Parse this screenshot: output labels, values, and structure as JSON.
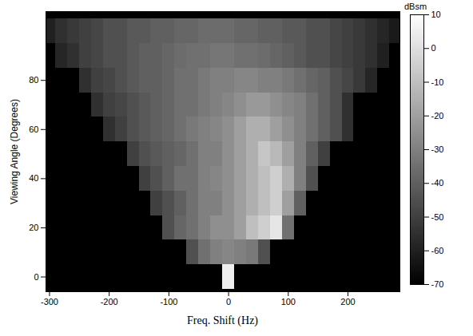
{
  "chart_data": {
    "type": "heatmap",
    "x_label": "Freq. Shift (Hz)",
    "y_label": "Viewing Angle (Degrees)",
    "xlim": [
      -306,
      287
    ],
    "xticks": [
      -300,
      -200,
      -100,
      0,
      100,
      200
    ],
    "ylim": [
      -6,
      108
    ],
    "yticks": [
      0,
      20,
      40,
      60,
      80
    ],
    "freq_edges": [
      -310,
      -290,
      -270,
      -250,
      -230,
      -210,
      -190,
      -170,
      -150,
      -130,
      -110,
      -90,
      -70,
      -50,
      -30,
      -10,
      10,
      30,
      50,
      70,
      90,
      110,
      130,
      150,
      170,
      190,
      210,
      230,
      250,
      270,
      290
    ],
    "angles": [
      0,
      10,
      20,
      30,
      40,
      50,
      60,
      70,
      80,
      90,
      100
    ],
    "cells": [
      [
        -70,
        -70,
        -70,
        -70,
        -70,
        -70,
        -70,
        -70,
        -70,
        -70,
        -70,
        -70,
        -70,
        -70,
        -70,
        5,
        -70,
        -70,
        -70,
        -70,
        -70,
        -70,
        -70,
        -70,
        -70,
        -70,
        -70,
        -70,
        -70,
        -70
      ],
      [
        -70,
        -70,
        -70,
        -70,
        -70,
        -70,
        -70,
        -70,
        -70,
        -70,
        -70,
        -70,
        -45,
        -35,
        -30,
        -28,
        -30,
        -32,
        -45,
        -70,
        -70,
        -70,
        -70,
        -70,
        -70,
        -70,
        -70,
        -70,
        -70,
        -70
      ],
      [
        -70,
        -70,
        -70,
        -70,
        -70,
        -70,
        -70,
        -70,
        -70,
        -70,
        -45,
        -38,
        -35,
        -30,
        -25,
        -25,
        -20,
        -10,
        -5,
        2,
        -35,
        -70,
        -70,
        -70,
        -70,
        -70,
        -70,
        -70,
        -70,
        -70
      ],
      [
        -70,
        -70,
        -70,
        -70,
        -70,
        -70,
        -70,
        -70,
        -70,
        -50,
        -45,
        -40,
        -35,
        -30,
        -30,
        -25,
        -20,
        -15,
        -10,
        -5,
        -20,
        -40,
        -70,
        -70,
        -70,
        -70,
        -70,
        -70,
        -70,
        -70
      ],
      [
        -70,
        -70,
        -70,
        -70,
        -70,
        -70,
        -70,
        -70,
        -50,
        -45,
        -40,
        -35,
        -35,
        -30,
        -28,
        -25,
        -20,
        -15,
        -10,
        -5,
        -15,
        -30,
        -45,
        -70,
        -70,
        -70,
        -70,
        -70,
        -70,
        -70
      ],
      [
        -70,
        -70,
        -70,
        -70,
        -70,
        -70,
        -70,
        -50,
        -45,
        -42,
        -40,
        -38,
        -35,
        -30,
        -30,
        -25,
        -20,
        -15,
        -8,
        -12,
        -20,
        -30,
        -40,
        -50,
        -70,
        -70,
        -70,
        -70,
        -70,
        -70
      ],
      [
        -70,
        -70,
        -70,
        -70,
        -70,
        -55,
        -50,
        -45,
        -42,
        -40,
        -38,
        -35,
        -32,
        -30,
        -28,
        -25,
        -20,
        -15,
        -15,
        -20,
        -25,
        -30,
        -35,
        -40,
        -45,
        -55,
        -70,
        -70,
        -70,
        -70
      ],
      [
        -70,
        -70,
        -70,
        -70,
        -55,
        -50,
        -48,
        -45,
        -42,
        -40,
        -38,
        -35,
        -35,
        -32,
        -30,
        -28,
        -25,
        -22,
        -22,
        -25,
        -28,
        -30,
        -35,
        -40,
        -45,
        -55,
        -70,
        -70,
        -70,
        -70
      ],
      [
        -70,
        -70,
        -70,
        -55,
        -50,
        -48,
        -45,
        -42,
        -40,
        -40,
        -38,
        -35,
        -35,
        -32,
        -30,
        -30,
        -28,
        -28,
        -30,
        -30,
        -32,
        -35,
        -38,
        -40,
        -45,
        -48,
        -52,
        -58,
        -70,
        -70
      ],
      [
        -70,
        -58,
        -55,
        -50,
        -48,
        -45,
        -45,
        -42,
        -40,
        -40,
        -38,
        -36,
        -35,
        -35,
        -33,
        -33,
        -35,
        -35,
        -36,
        -38,
        -40,
        -42,
        -45,
        -45,
        -48,
        -50,
        -52,
        -55,
        -60,
        -70
      ],
      [
        -60,
        -55,
        -52,
        -50,
        -48,
        -45,
        -45,
        -42,
        -42,
        -40,
        -40,
        -38,
        -38,
        -36,
        -36,
        -36,
        -38,
        -38,
        -40,
        -40,
        -42,
        -42,
        -45,
        -45,
        -48,
        -50,
        -52,
        -55,
        -58,
        -62
      ]
    ],
    "colorbar": {
      "label": "dBsm",
      "range": [
        -70,
        10
      ],
      "ticks": [
        10,
        0,
        -10,
        -20,
        -30,
        -40,
        -50,
        -60,
        -70
      ],
      "colors": [
        "#000000",
        "#ffffff"
      ]
    }
  }
}
